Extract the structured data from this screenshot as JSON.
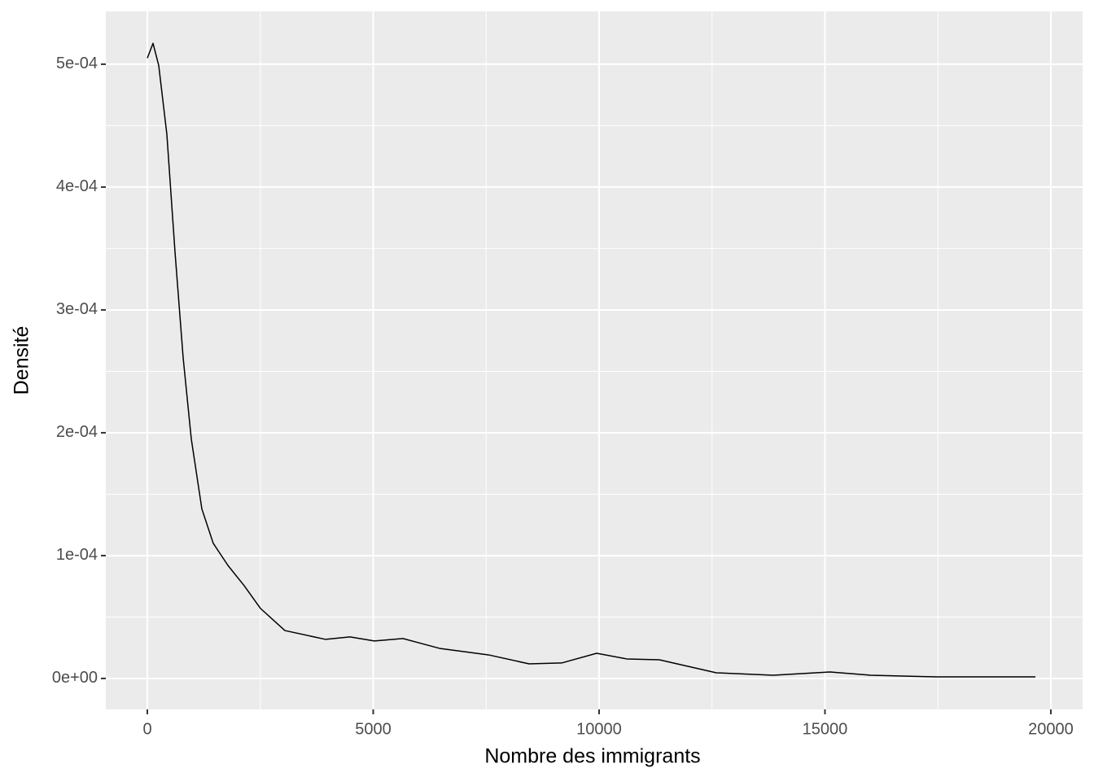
{
  "chart_data": {
    "type": "line",
    "x_label": "Nombre des immigrants",
    "y_label": "Densité",
    "x": [
      0,
      126,
      252,
      432,
      613,
      793,
      973,
      1207,
      1459,
      1784,
      2144,
      2505,
      3045,
      3946,
      4486,
      5027,
      5658,
      6468,
      7550,
      8450,
      9171,
      9946,
      10613,
      11333,
      12595,
      13856,
      15117,
      16018,
      17459,
      19658
    ],
    "values": [
      0.000505,
      0.000517,
      0.000499,
      0.000443,
      0.000347,
      0.000261,
      0.000195,
      0.000138,
      0.00011,
      9.2e-05,
      7.55e-05,
      5.7e-05,
      3.9e-05,
      3.18e-05,
      3.38e-05,
      3.05e-05,
      3.25e-05,
      2.45e-05,
      1.92e-05,
      1.19e-05,
      1.26e-05,
      2.05e-05,
      1.59e-05,
      1.52e-05,
      4.6e-06,
      2.6e-06,
      5.3e-06,
      2.6e-06,
      1.3e-06,
      1.3e-06
    ],
    "color": "#000000",
    "xlim": [
      -919,
      20703
    ],
    "ylim": [
      -2.52e-05,
      0.000543
    ],
    "xticks": [
      0,
      5000,
      10000,
      15000,
      20000
    ],
    "yticks": [
      {
        "value": 0,
        "label": "0e+00"
      },
      {
        "value": 0.0001,
        "label": "1e-04"
      },
      {
        "value": 0.0002,
        "label": "2e-04"
      },
      {
        "value": 0.0003,
        "label": "3e-04"
      },
      {
        "value": 0.0004,
        "label": "4e-04"
      },
      {
        "value": 0.0005,
        "label": "5e-04"
      }
    ],
    "xminorticks": [
      2500,
      7500,
      12500,
      17500
    ],
    "yminorticks": [
      5e-05,
      0.00015,
      0.00025,
      0.00035,
      0.00045
    ],
    "grid": true
  }
}
